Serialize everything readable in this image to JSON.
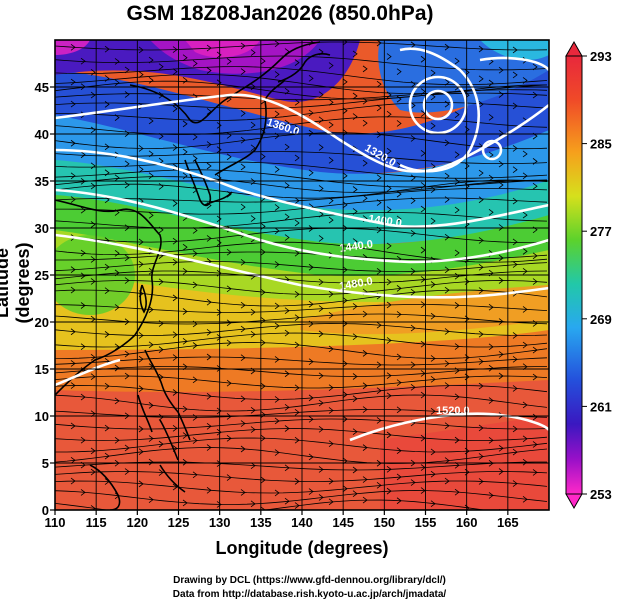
{
  "title": "GSM 18Z08Jan2026 (850.0hPa)",
  "xlabel": "Longitude (degrees)",
  "ylabel": "Latitude  (degrees)",
  "x_ticks": [
    "110",
    "115",
    "120",
    "125",
    "130",
    "135",
    "140",
    "145",
    "150",
    "155",
    "160",
    "165"
  ],
  "y_ticks": [
    "0",
    "5",
    "10",
    "15",
    "20",
    "25",
    "30",
    "35",
    "40",
    "45"
  ],
  "colorbar": {
    "ticks": [
      "293",
      "285",
      "277",
      "269",
      "261",
      "253"
    ],
    "colors": [
      "#e8283c",
      "#f06a1e",
      "#f7b21c",
      "#d6e01c",
      "#5cd22c",
      "#22c8a8",
      "#28a8f0",
      "#2450dc",
      "#3a18c0",
      "#9810c8",
      "#ff28c8"
    ]
  },
  "contour_labels": [
    "1360.0",
    "1320.0",
    "1400.0",
    "1440.0",
    "1480.0",
    "1520.0"
  ],
  "credits": {
    "line1": "Drawing by DCL (https://www.gfd-dennou.org/library/dcl/)",
    "line2": "Data from http://database.rish.kyoto-u.ac.jp/arch/jmadata/"
  },
  "chart_data": {
    "type": "heatmap",
    "title": "GSM 18Z08Jan2026 (850.0hPa)",
    "xlabel": "Longitude (degrees)",
    "ylabel": "Latitude  (degrees)",
    "xlim": [
      110,
      170
    ],
    "ylim": [
      0,
      50
    ],
    "colorbar_range": [
      253,
      293
    ],
    "grid": true,
    "contours": [
      {
        "label": "1360.0",
        "lon": 137,
        "lat": 43
      },
      {
        "label": "1320.0",
        "lon": 148,
        "lat": 39
      },
      {
        "label": "1400.0",
        "lon": 147,
        "lat": 31
      },
      {
        "label": "1440.0",
        "lon": 145,
        "lat": 28
      },
      {
        "label": "1480.0",
        "lon": 147,
        "lat": 24
      },
      {
        "label": "1520.0",
        "lon": 159,
        "lat": 10
      }
    ]
  }
}
